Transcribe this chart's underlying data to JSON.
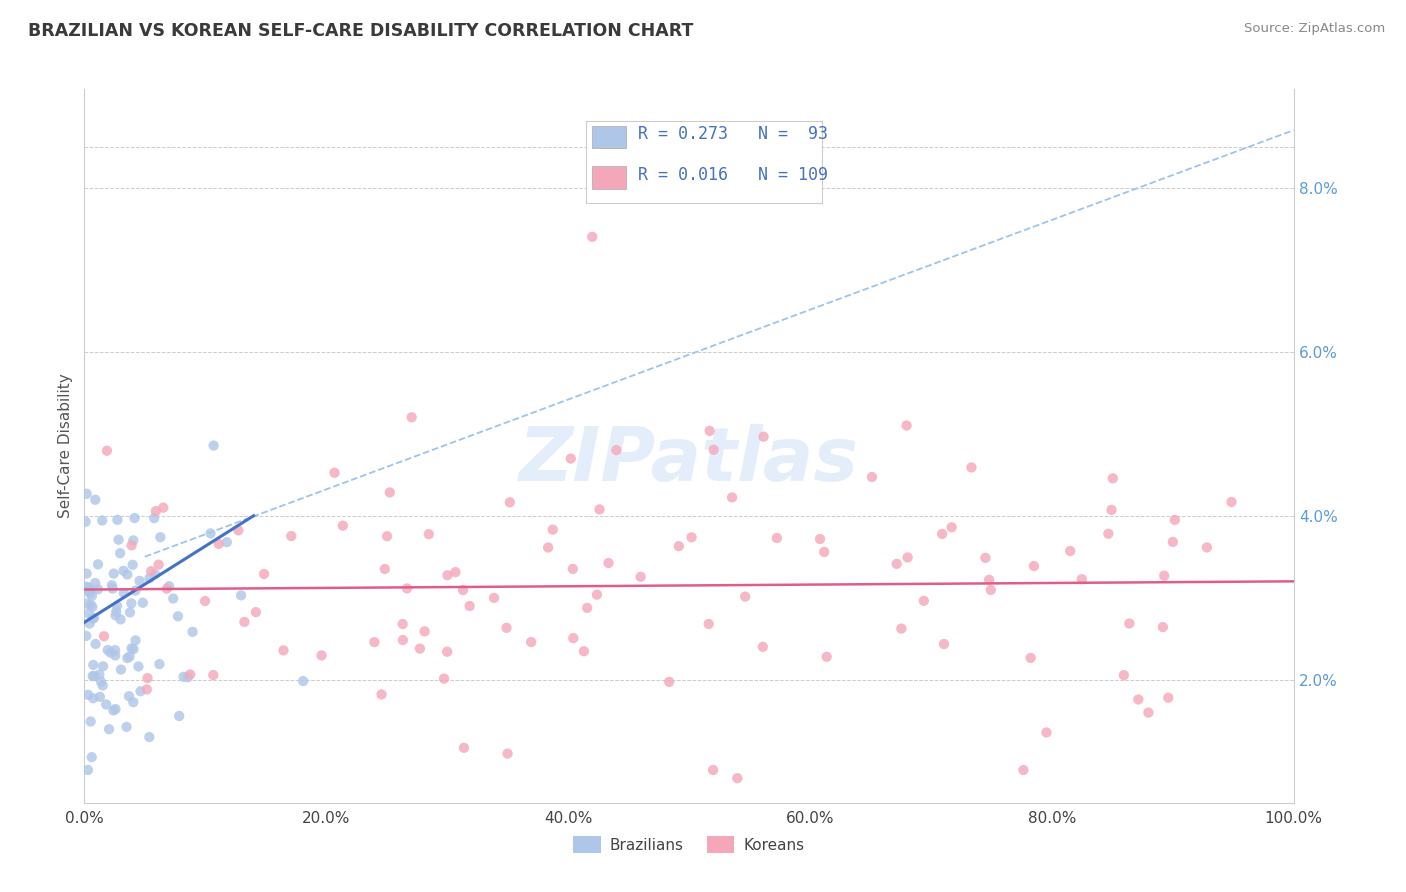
{
  "title": "BRAZILIAN VS KOREAN SELF-CARE DISABILITY CORRELATION CHART",
  "source": "Source: ZipAtlas.com",
  "ylabel": "Self-Care Disability",
  "xlim": [
    0,
    1.0
  ],
  "ylim": [
    0.005,
    0.092
  ],
  "xtick_vals": [
    0.0,
    0.2,
    0.4,
    0.6,
    0.8,
    1.0
  ],
  "xtick_labels": [
    "0.0%",
    "20.0%",
    "40.0%",
    "60.0%",
    "80.0%",
    "100.0%"
  ],
  "ytick_vals": [
    0.02,
    0.04,
    0.06,
    0.08
  ],
  "ytick_labels": [
    "2.0%",
    "4.0%",
    "6.0%",
    "8.0%"
  ],
  "brazil_color": "#aec6e8",
  "korea_color": "#f4a7b9",
  "brazil_line_color": "#4472c4",
  "korea_line_color": "#e05c8a",
  "dash_line_color": "#9ec4e8",
  "brazil_R": 0.273,
  "brazil_N": 93,
  "korea_R": 0.016,
  "korea_N": 109,
  "legend_label_brazil": "Brazilians",
  "legend_label_korea": "Koreans",
  "watermark": "ZIPatlas",
  "title_color": "#3a3a3a",
  "tick_color": "#5b9bd5",
  "axis_label_color": "#555555"
}
